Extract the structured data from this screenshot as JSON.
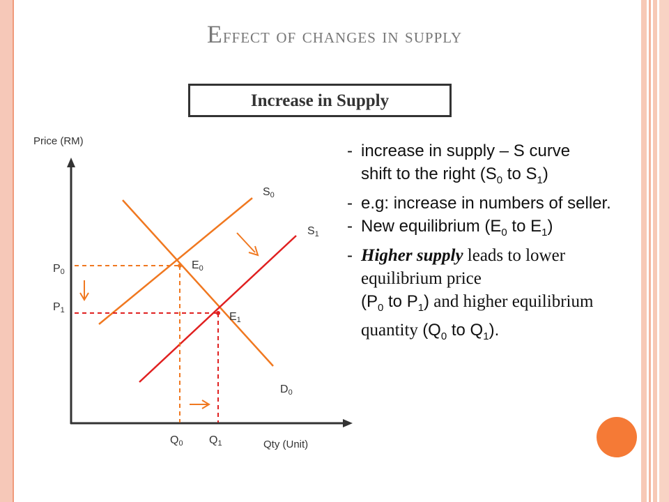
{
  "slide": {
    "title": "Effect of changes in supply",
    "subtitle": "Increase in Supply"
  },
  "diagram": {
    "y_axis_label": "Price (RM)",
    "x_axis_label": "Qty (Unit)",
    "curves": {
      "S0": {
        "main": "S",
        "sub": "0"
      },
      "S1": {
        "main": "S",
        "sub": "1"
      },
      "D0": {
        "main": "D",
        "sub": "0"
      }
    },
    "points": {
      "E0": {
        "main": "E",
        "sub": "0"
      },
      "E1": {
        "main": "E",
        "sub": "1"
      }
    },
    "ticks": {
      "P0": {
        "main": "P",
        "sub": "0"
      },
      "P1": {
        "main": "P",
        "sub": "1"
      },
      "Q0": {
        "main": "Q",
        "sub": "0"
      },
      "Q1": {
        "main": "Q",
        "sub": "1"
      }
    },
    "colors": {
      "supply_original": "#f07820",
      "supply_new": "#e02020",
      "demand": "#f07820",
      "axis": "#333333"
    }
  },
  "explanation": [
    {
      "line1": "increase in supply – S curve",
      "line2a": "shift to the right (S",
      "s0": "0",
      "mid": " to S",
      "s1": "1",
      "end": ")"
    },
    {
      "text": "e.g: increase in numbers of seller."
    },
    {
      "a": "New equilibrium (E",
      "s0": "0",
      "mid": " to E",
      "s1": "1",
      "end": ")"
    },
    {
      "bold": "Higher supply",
      "t1": " leads to lower  equilibrium price",
      "t2": "(P",
      "s0": "0",
      "t3": " to P",
      "s1": "1",
      "t4": ")",
      "t5": " and higher equilibrium quantity ",
      "t6": "(Q",
      "s2": "0",
      "t7": " to Q",
      "s3": "1",
      "t8": ")."
    }
  ],
  "decor": {
    "accent": "#f57a36",
    "frame": "#f6c8b8"
  }
}
